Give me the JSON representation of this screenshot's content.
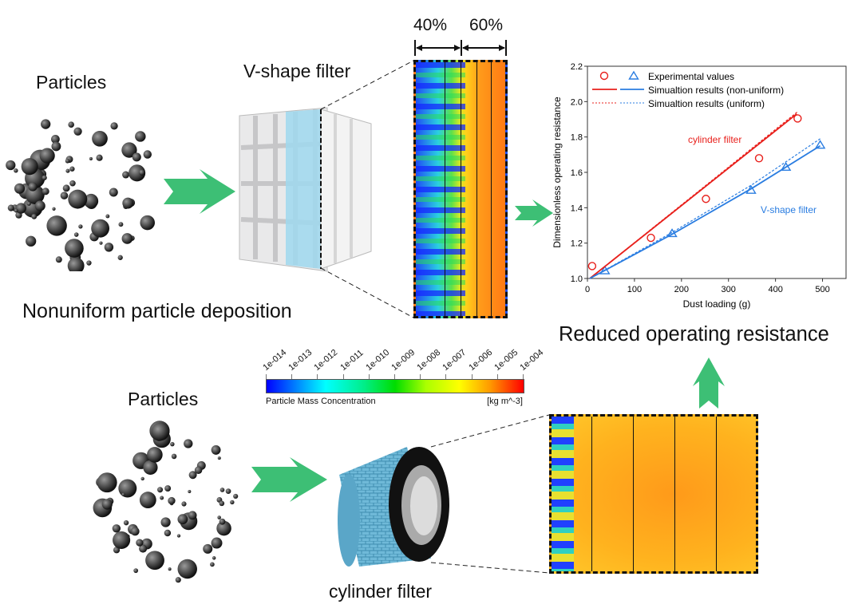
{
  "top": {
    "particles_label": "Particles",
    "filter_label": "V-shape filter",
    "caption": "Nonuniform particle deposition",
    "split_left": "40%",
    "split_right": "60%"
  },
  "bottom": {
    "particles_label": "Particles",
    "filter_label": "cylinder filter"
  },
  "result_caption": "Reduced operating resistance",
  "colorbar": {
    "ticks": [
      "1e-014",
      "1e-013",
      "1e-012",
      "1e-011",
      "1e-010",
      "1e-009",
      "1e-008",
      "1e-007",
      "1e-006",
      "1e-005",
      "1e-004"
    ],
    "title": "Particle Mass Concentration",
    "unit": "[kg m^-3]"
  },
  "colors": {
    "arrow": "#3dbf75",
    "red": "#e8201c",
    "blue": "#2a7de1"
  },
  "chart_data": {
    "type": "scatter",
    "xlabel": "Dust loading (g)",
    "ylabel": "Dimensionless operating resistance",
    "xlim": [
      0,
      550
    ],
    "ylim": [
      1.0,
      2.2
    ],
    "xticks": [
      0,
      100,
      200,
      300,
      400,
      500
    ],
    "yticks": [
      1.0,
      1.2,
      1.4,
      1.6,
      1.8,
      2.0,
      2.2
    ],
    "legend": [
      "Experimental values",
      "Simualtion results (non-uniform)",
      "Simualtion results (uniform)"
    ],
    "legend_position": "top-left",
    "annotations": [
      "cylinder filter",
      "V-shape filter"
    ],
    "series": [
      {
        "name": "cylinder filter experimental",
        "marker": "circle",
        "color": "#e8201c",
        "x": [
          10,
          135,
          252,
          365,
          447
        ],
        "y": [
          1.07,
          1.23,
          1.45,
          1.68,
          1.905
        ]
      },
      {
        "name": "V-shape filter experimental",
        "marker": "triangle",
        "color": "#2a7de1",
        "x": [
          37,
          180,
          348,
          422,
          495
        ],
        "y": [
          1.045,
          1.255,
          1.5,
          1.63,
          1.755
        ]
      },
      {
        "name": "cylinder non-uniform",
        "line": "solid",
        "color": "#e8201c",
        "x": [
          5,
          445
        ],
        "y": [
          1.0,
          1.93
        ]
      },
      {
        "name": "cylinder uniform",
        "line": "dashed",
        "color": "#e8201c",
        "x": [
          5,
          448
        ],
        "y": [
          1.0,
          1.945
        ]
      },
      {
        "name": "V-shape non-uniform",
        "line": "solid",
        "color": "#2a7de1",
        "x": [
          5,
          180,
          350,
          495
        ],
        "y": [
          1.0,
          1.25,
          1.51,
          1.75
        ]
      },
      {
        "name": "V-shape uniform",
        "line": "dashed",
        "color": "#2a7de1",
        "x": [
          5,
          180,
          350,
          495
        ],
        "y": [
          1.0,
          1.26,
          1.53,
          1.79
        ]
      }
    ]
  }
}
